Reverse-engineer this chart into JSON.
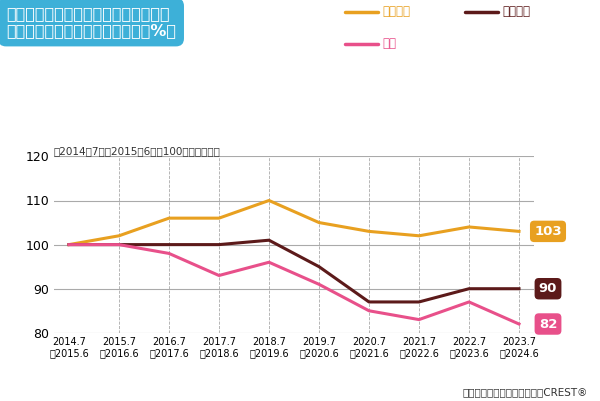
{
  "x_labels": [
    "2014.7\n〜2015.6",
    "2015.7\n〜2016.6",
    "2016.7\n〜2017.6",
    "2017.7\n〜2018.6",
    "2018.7\n〜2019.6",
    "2019.7\n〜2020.6",
    "2020.7\n〜2021.6",
    "2021.7\n〜2022.6",
    "2022.7\n〜2023.6",
    "2023.7\n〜2024.6"
  ],
  "tea_values": [
    100,
    102,
    106,
    106,
    110,
    105,
    103,
    102,
    104,
    103
  ],
  "coffee_values": [
    100,
    100,
    100,
    100,
    101,
    95,
    87,
    87,
    90,
    90
  ],
  "black_tea_values": [
    100,
    100,
    98,
    93,
    96,
    91,
    85,
    83,
    87,
    82
  ],
  "tea_color": "#E8A020",
  "coffee_color": "#5C1A1A",
  "black_tea_color": "#E8508A",
  "title_box_color": "#3DB0D8",
  "title_text": "外食・中食全体における、茶系飲料、\n紅茶、コーヒーの食機会数推移（%）",
  "subtitle_text": "（2014年7月〜2015年6月を100とした場合）",
  "legend_tea": "茶系飲料",
  "legend_coffee": "コーヒー",
  "legend_black_tea": "紅茶",
  "source_text": "出典：サカーナ・ジャパン　CREST®",
  "ylim_min": 80,
  "ylim_max": 120,
  "yticks": [
    80,
    90,
    100,
    110,
    120
  ],
  "end_labels": {
    "tea": "103",
    "coffee": "90",
    "black_tea": "82"
  },
  "bg_color": "#FFFFFF",
  "grid_color": "#AAAAAA",
  "line_width": 2.2
}
